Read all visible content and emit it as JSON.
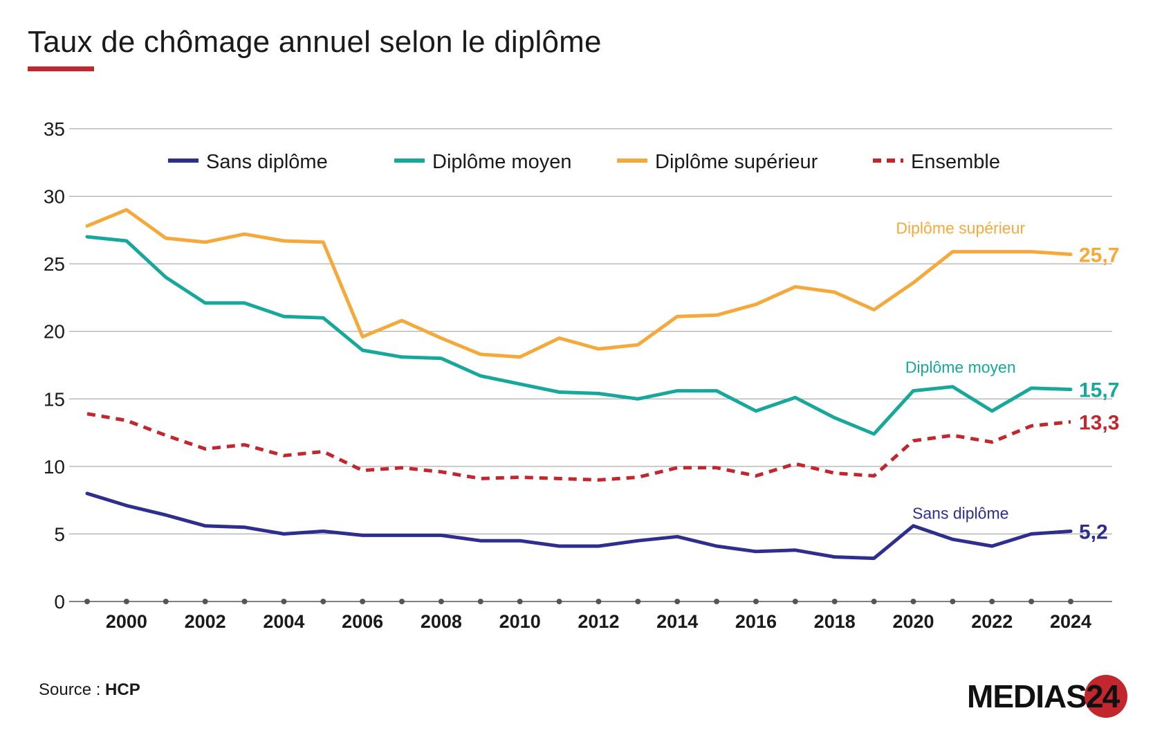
{
  "header": {
    "title": "Taux de chômage annuel selon le diplôme"
  },
  "footer": {
    "source_prefix": "Source : ",
    "source_name": "HCP",
    "logo_text": "MEDIAS",
    "logo_number": "24"
  },
  "colors": {
    "sans": "#2e2e8f",
    "moyen": "#16a89a",
    "superieur": "#f6a93b",
    "ensemble": "#c1272d",
    "grid": "#9a9a9a",
    "accent": "#c1272d"
  },
  "chart_data": {
    "type": "line",
    "title": "Taux de chômage annuel selon le diplôme",
    "xlabel": "",
    "ylabel": "",
    "ylim": [
      0,
      35
    ],
    "yticks": [
      0,
      5,
      10,
      15,
      20,
      25,
      30,
      35
    ],
    "xlim": [
      1999,
      2024
    ],
    "xticks": [
      2000,
      2002,
      2004,
      2006,
      2008,
      2010,
      2012,
      2014,
      2016,
      2018,
      2020,
      2022,
      2024
    ],
    "x": [
      1999,
      2000,
      2001,
      2002,
      2003,
      2004,
      2005,
      2006,
      2007,
      2008,
      2009,
      2010,
      2011,
      2012,
      2013,
      2014,
      2015,
      2016,
      2017,
      2018,
      2019,
      2020,
      2021,
      2022,
      2023,
      2024
    ],
    "grid": true,
    "legend_position": "top",
    "series": [
      {
        "key": "sans",
        "name": "Sans diplôme",
        "style": "solid",
        "label": "Sans diplôme",
        "end_label": "5,2",
        "values": [
          8.0,
          7.1,
          6.4,
          5.6,
          5.5,
          5.0,
          5.2,
          4.9,
          4.9,
          4.9,
          4.5,
          4.5,
          4.1,
          4.1,
          4.5,
          4.8,
          4.1,
          3.7,
          3.8,
          3.3,
          3.2,
          5.6,
          4.6,
          4.1,
          5.0,
          5.2
        ]
      },
      {
        "key": "moyen",
        "name": "Diplôme moyen",
        "style": "solid",
        "label": "Diplôme moyen",
        "end_label": "15,7",
        "values": [
          27.0,
          26.7,
          24.0,
          22.1,
          22.1,
          21.1,
          21.0,
          18.6,
          18.1,
          18.0,
          16.7,
          16.1,
          15.5,
          15.4,
          15.0,
          15.6,
          15.6,
          14.1,
          15.1,
          13.6,
          12.4,
          15.6,
          15.9,
          14.1,
          15.8,
          15.7
        ]
      },
      {
        "key": "superieur",
        "name": "Diplôme supérieur",
        "style": "solid",
        "label": "Diplôme supérieur",
        "end_label": "25,7",
        "values": [
          27.8,
          29.0,
          26.9,
          26.6,
          27.2,
          26.7,
          26.6,
          19.6,
          20.8,
          19.5,
          18.3,
          18.1,
          19.5,
          18.7,
          19.0,
          21.1,
          21.2,
          22.0,
          23.3,
          22.9,
          21.6,
          23.6,
          25.9,
          25.9,
          25.9,
          25.7
        ]
      },
      {
        "key": "ensemble",
        "name": "Ensemble",
        "style": "dashed",
        "values": [
          13.9,
          13.4,
          12.3,
          11.3,
          11.6,
          10.8,
          11.1,
          9.7,
          9.9,
          9.6,
          9.1,
          9.2,
          9.1,
          9.0,
          9.2,
          9.9,
          9.9,
          9.3,
          10.2,
          9.5,
          9.3,
          11.9,
          12.3,
          11.8,
          13.0,
          13.3
        ],
        "end_label": "13,3"
      }
    ]
  }
}
